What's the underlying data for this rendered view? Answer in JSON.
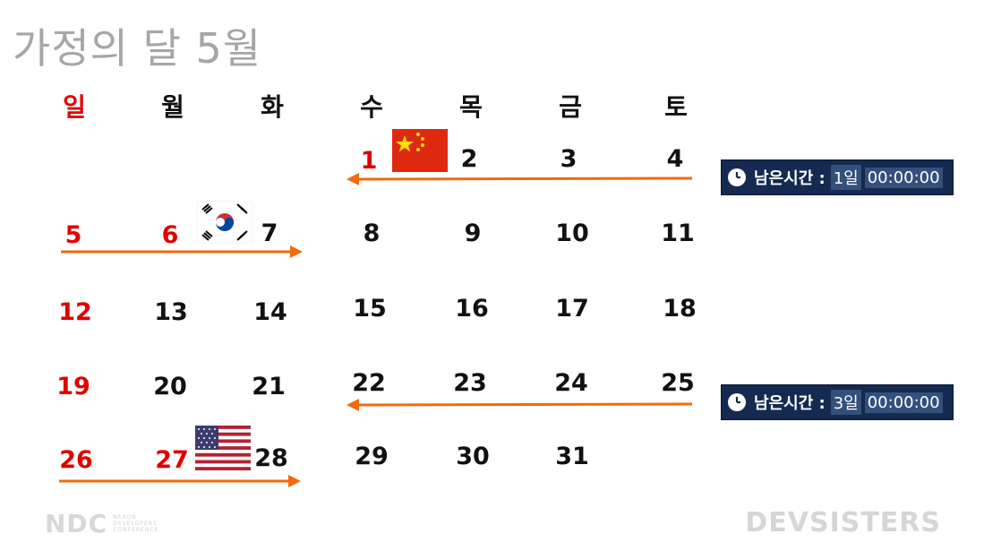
{
  "title": "가정의 달 5월",
  "weekdays": [
    "일",
    "월",
    "화",
    "수",
    "목",
    "금",
    "토"
  ],
  "days": {
    "d1": "1",
    "d2": "2",
    "d3": "3",
    "d4": "4",
    "d5": "5",
    "d6": "6",
    "d7": "7",
    "d8": "8",
    "d9": "9",
    "d10": "10",
    "d11": "11",
    "d12": "12",
    "d13": "13",
    "d14": "14",
    "d15": "15",
    "d16": "16",
    "d17": "17",
    "d18": "18",
    "d19": "19",
    "d20": "20",
    "d21": "21",
    "d22": "22",
    "d23": "23",
    "d24": "24",
    "d25": "25",
    "d26": "26",
    "d27": "27",
    "d28": "28",
    "d29": "29",
    "d30": "30",
    "d31": "31"
  },
  "timers": [
    {
      "label": "남은시간 :",
      "days": "1일",
      "time": "00:00:00"
    },
    {
      "label": "남은시간 :",
      "days": "3일",
      "time": "00:00:00"
    }
  ],
  "icons": {
    "clock": "clock-icon",
    "flags": [
      "china-flag",
      "korea-flag",
      "usa-flag"
    ]
  },
  "colors": {
    "holiday_red": "#e00000",
    "arrow_orange": "#f26a0c",
    "timer_bg": "#142a50",
    "title_gray": "#a6a6a6"
  },
  "footer": {
    "left_logo": "NDC",
    "left_sub": "NEXON DEVELOPERS CONFERENCE",
    "right_logo": "DEVSISTERS"
  }
}
